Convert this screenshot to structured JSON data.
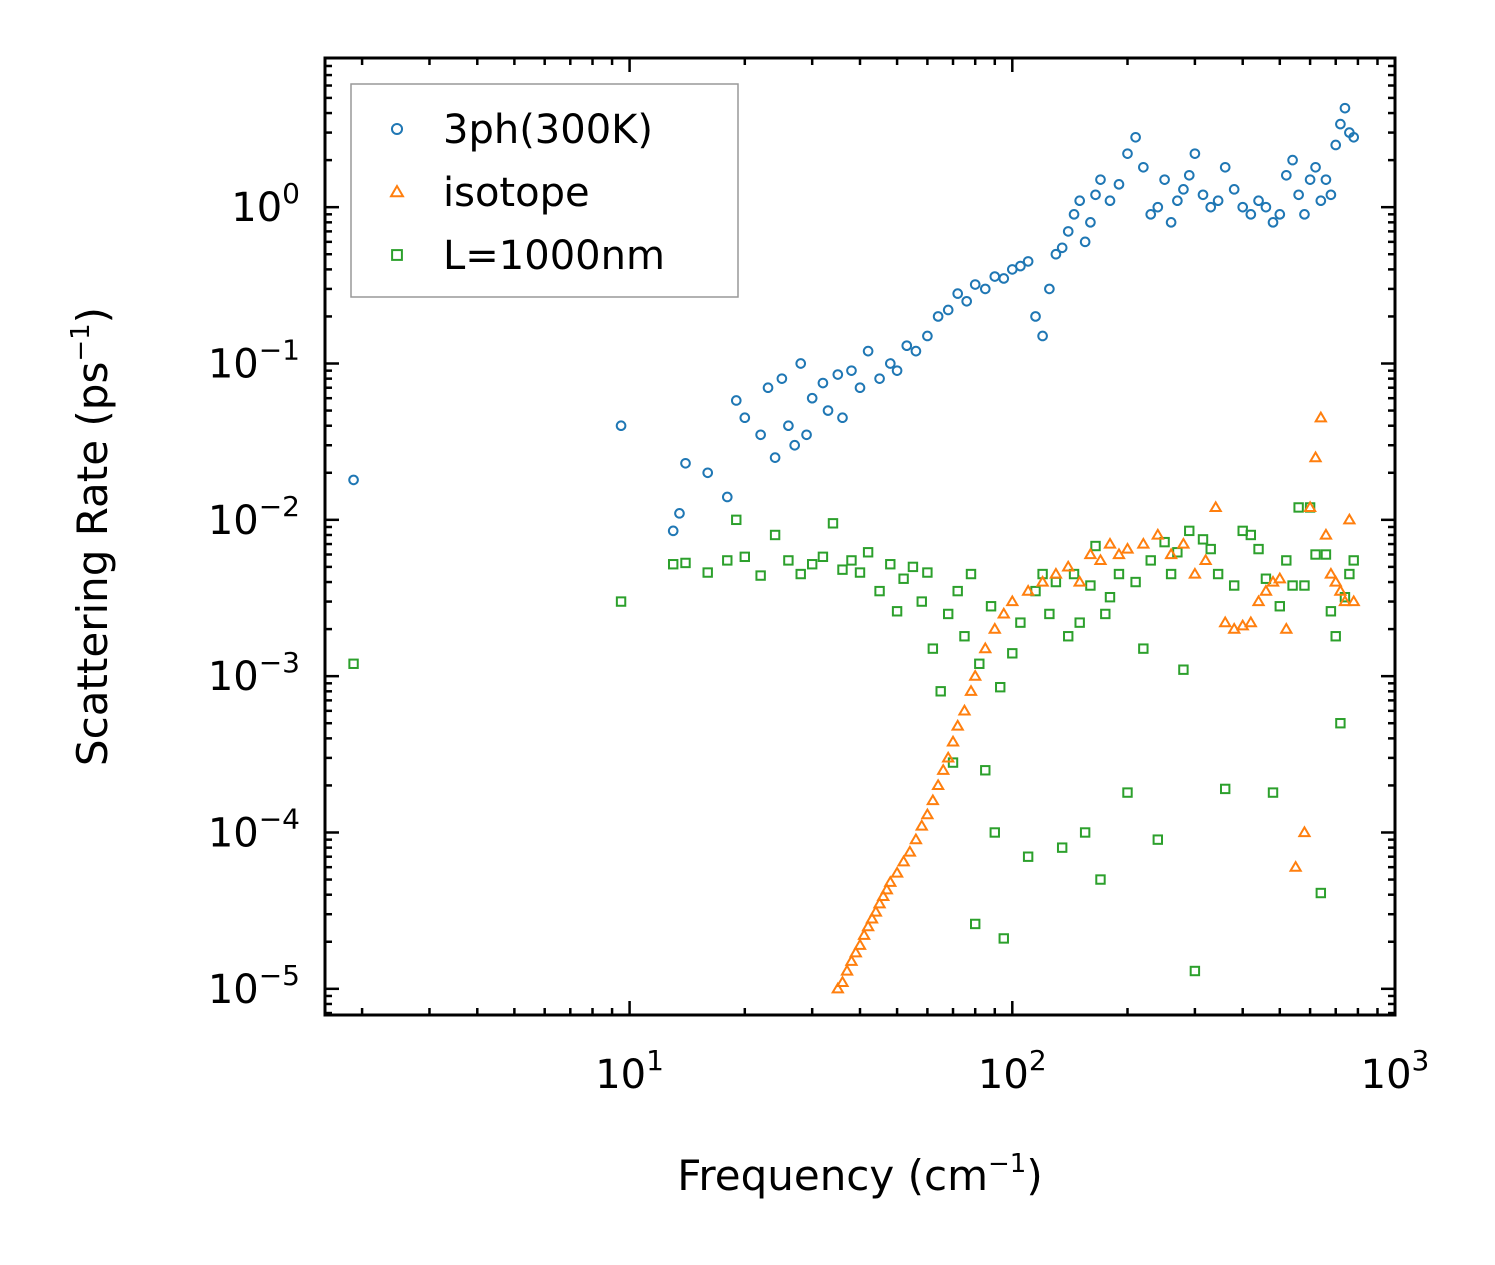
{
  "chart_data": {
    "type": "scatter",
    "xscale": "log",
    "yscale": "log",
    "xlim": [
      1.6,
      1000
    ],
    "ylim": [
      6.8e-06,
      9
    ],
    "xlabel": "Frequency (cm⁻¹)",
    "xlabel_main": "Frequency (cm",
    "xlabel_sup": "−1",
    "xlabel_end": ")",
    "ylabel": "Scattering Rate (ps⁻¹)",
    "ylabel_main": "Scattering Rate (ps",
    "ylabel_sup": "−1",
    "ylabel_end": ")",
    "xticks": [
      {
        "value": 10,
        "base": "10",
        "exp": "1"
      },
      {
        "value": 100,
        "base": "10",
        "exp": "2"
      },
      {
        "value": 1000,
        "base": "10",
        "exp": "3"
      }
    ],
    "yticks": [
      {
        "value": 1,
        "base": "10",
        "exp": "0"
      },
      {
        "value": 0.1,
        "base": "10",
        "exp": "−1"
      },
      {
        "value": 0.01,
        "base": "10",
        "exp": "−2"
      },
      {
        "value": 0.001,
        "base": "10",
        "exp": "−3"
      },
      {
        "value": 0.0001,
        "base": "10",
        "exp": "−4"
      },
      {
        "value": 1e-05,
        "base": "10",
        "exp": "−5"
      }
    ],
    "legend_position": "top-left",
    "series": [
      {
        "name": "3ph(300K)",
        "marker": "circle",
        "color": "#1f77b4",
        "x": [
          1.9,
          9.5,
          13,
          13.5,
          14,
          16,
          18,
          19,
          20,
          22,
          23,
          24,
          25,
          26,
          27,
          28,
          29,
          30,
          32,
          33,
          35,
          36,
          38,
          40,
          42,
          45,
          48,
          50,
          53,
          56,
          60,
          64,
          68,
          72,
          76,
          80,
          85,
          90,
          95,
          100,
          105,
          110,
          115,
          120,
          125,
          130,
          135,
          140,
          145,
          150,
          155,
          160,
          165,
          170,
          180,
          190,
          200,
          210,
          220,
          230,
          240,
          250,
          260,
          270,
          280,
          290,
          300,
          315,
          330,
          345,
          360,
          380,
          400,
          420,
          440,
          460,
          480,
          500,
          520,
          540,
          560,
          580,
          600,
          620,
          640,
          660,
          680,
          700,
          720,
          740,
          760,
          780
        ],
        "y": [
          0.018,
          0.04,
          0.0085,
          0.011,
          0.023,
          0.02,
          0.014,
          0.058,
          0.045,
          0.035,
          0.07,
          0.025,
          0.08,
          0.04,
          0.03,
          0.1,
          0.035,
          0.06,
          0.075,
          0.05,
          0.085,
          0.045,
          0.09,
          0.07,
          0.12,
          0.08,
          0.1,
          0.09,
          0.13,
          0.12,
          0.15,
          0.2,
          0.22,
          0.28,
          0.25,
          0.32,
          0.3,
          0.36,
          0.35,
          0.4,
          0.42,
          0.45,
          0.2,
          0.15,
          0.3,
          0.5,
          0.55,
          0.7,
          0.9,
          1.1,
          0.6,
          0.8,
          1.2,
          1.5,
          1.1,
          1.4,
          2.2,
          2.8,
          1.8,
          0.9,
          1.0,
          1.5,
          0.8,
          1.1,
          1.3,
          1.6,
          2.2,
          1.2,
          1.0,
          1.1,
          1.8,
          1.3,
          1.0,
          0.9,
          1.1,
          1.0,
          0.8,
          0.9,
          1.6,
          2.0,
          1.2,
          0.9,
          1.5,
          1.8,
          1.1,
          1.5,
          1.2,
          2.5,
          3.4,
          4.3,
          3.0,
          2.8
        ]
      },
      {
        "name": "isotope",
        "marker": "triangle",
        "color": "#ff7f0e",
        "x": [
          35,
          36,
          37,
          38,
          39,
          40,
          41,
          42,
          43,
          44,
          45,
          46,
          47,
          48,
          50,
          52,
          54,
          56,
          58,
          60,
          62,
          64,
          66,
          68,
          70,
          72,
          75,
          78,
          80,
          85,
          90,
          95,
          100,
          110,
          120,
          130,
          140,
          150,
          160,
          170,
          180,
          190,
          200,
          220,
          240,
          260,
          280,
          300,
          320,
          340,
          360,
          380,
          400,
          420,
          440,
          460,
          480,
          500,
          520,
          550,
          580,
          600,
          620,
          640,
          660,
          680,
          700,
          720,
          740,
          760,
          780
        ],
        "y": [
          1e-05,
          1.1e-05,
          1.3e-05,
          1.5e-05,
          1.7e-05,
          1.9e-05,
          2.2e-05,
          2.5e-05,
          2.8e-05,
          3.1e-05,
          3.5e-05,
          3.9e-05,
          4.3e-05,
          4.8e-05,
          5.5e-05,
          6.5e-05,
          7.5e-05,
          9e-05,
          0.00011,
          0.00013,
          0.00016,
          0.0002,
          0.00025,
          0.0003,
          0.00038,
          0.00048,
          0.0006,
          0.0008,
          0.001,
          0.0015,
          0.002,
          0.0025,
          0.003,
          0.0035,
          0.004,
          0.0045,
          0.005,
          0.004,
          0.006,
          0.0055,
          0.007,
          0.006,
          0.0065,
          0.007,
          0.008,
          0.006,
          0.007,
          0.0045,
          0.0055,
          0.012,
          0.0022,
          0.002,
          0.0021,
          0.0022,
          0.003,
          0.0035,
          0.004,
          0.0042,
          0.002,
          6e-05,
          0.0001,
          0.012,
          0.025,
          0.045,
          0.008,
          0.0045,
          0.004,
          0.0035,
          0.003,
          0.01,
          0.003
        ]
      },
      {
        "name": "L=1000nm",
        "marker": "square",
        "color": "#2ca02c",
        "x": [
          1.9,
          9.5,
          13,
          14,
          16,
          18,
          19,
          20,
          22,
          24,
          26,
          28,
          30,
          32,
          34,
          36,
          38,
          40,
          42,
          45,
          48,
          50,
          52,
          55,
          58,
          60,
          62,
          65,
          68,
          70,
          72,
          75,
          78,
          80,
          82,
          85,
          88,
          90,
          93,
          95,
          100,
          105,
          110,
          115,
          120,
          125,
          130,
          135,
          140,
          145,
          150,
          155,
          160,
          165,
          170,
          175,
          180,
          190,
          200,
          210,
          220,
          230,
          240,
          250,
          260,
          270,
          280,
          290,
          300,
          315,
          330,
          345,
          360,
          380,
          400,
          420,
          440,
          460,
          480,
          500,
          520,
          540,
          560,
          580,
          600,
          620,
          640,
          660,
          680,
          700,
          720,
          740,
          760,
          780
        ],
        "y": [
          0.0012,
          0.003,
          0.0052,
          0.0053,
          0.0046,
          0.0055,
          0.01,
          0.0058,
          0.0044,
          0.008,
          0.0055,
          0.0045,
          0.0052,
          0.0058,
          0.0095,
          0.0048,
          0.0055,
          0.0046,
          0.0062,
          0.0035,
          0.0052,
          0.0026,
          0.0042,
          0.005,
          0.003,
          0.0046,
          0.0015,
          0.0008,
          0.0025,
          0.00028,
          0.0035,
          0.0018,
          0.0045,
          2.6e-05,
          0.0012,
          0.00025,
          0.0028,
          0.0001,
          0.00085,
          2.1e-05,
          0.0014,
          0.0022,
          7e-05,
          0.0035,
          0.0045,
          0.0025,
          0.004,
          8e-05,
          0.0018,
          0.0045,
          0.0022,
          0.0001,
          0.0038,
          0.0068,
          5e-05,
          0.0025,
          0.0032,
          0.0045,
          0.00018,
          0.004,
          0.0015,
          0.0055,
          9e-05,
          0.0072,
          0.0045,
          0.0062,
          0.0011,
          0.0085,
          1.3e-05,
          0.0075,
          0.0065,
          0.0045,
          0.00019,
          0.0038,
          0.0085,
          0.008,
          0.0065,
          0.0042,
          0.00018,
          0.0028,
          0.0055,
          0.0038,
          0.012,
          0.0038,
          0.012,
          0.006,
          4.1e-05,
          0.006,
          0.0026,
          0.0018,
          0.0005,
          0.0032,
          0.0045,
          0.0055
        ]
      }
    ]
  }
}
